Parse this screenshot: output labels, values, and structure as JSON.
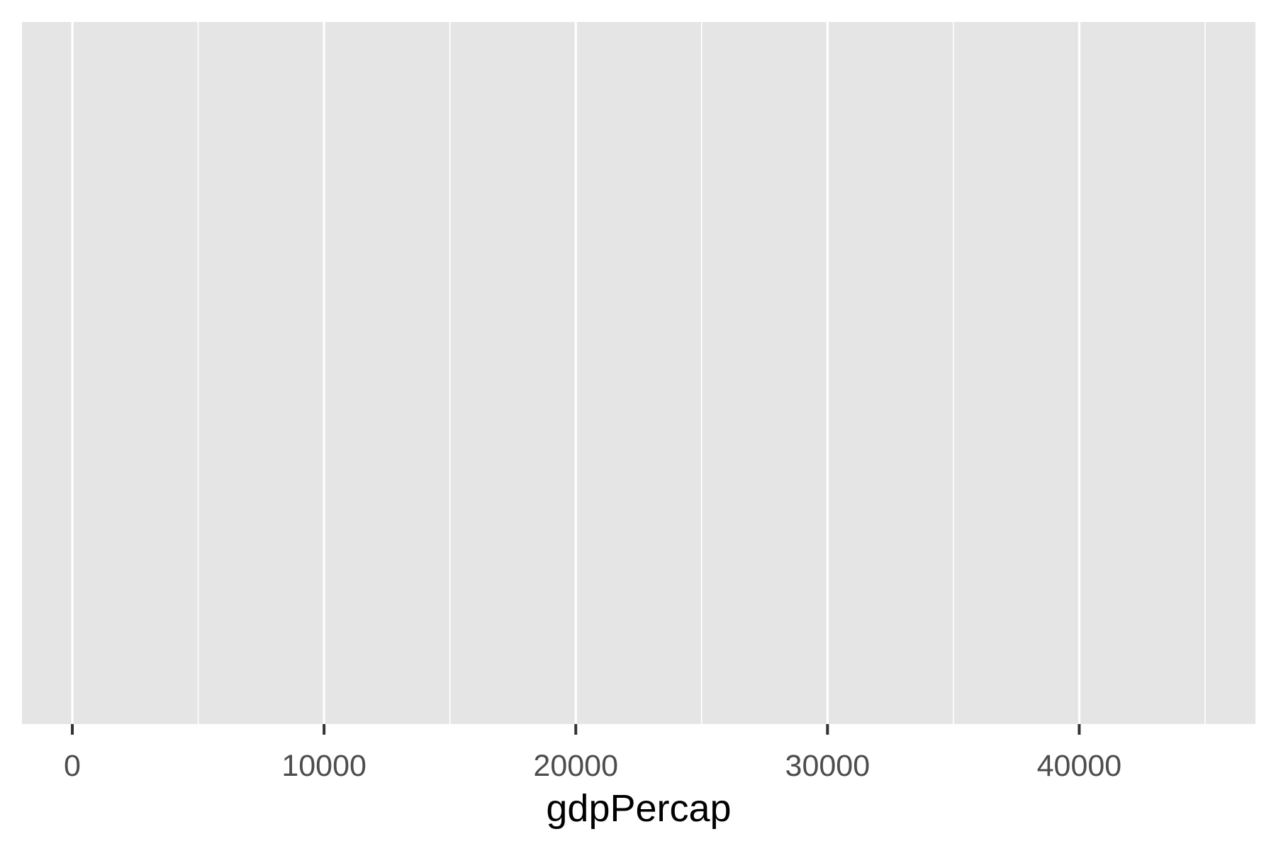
{
  "chart_data": {
    "type": "scatter",
    "title": "",
    "xlabel": "gdpPercap",
    "ylabel": "",
    "xlim": [
      -2000,
      47000
    ],
    "x_ticks": [
      0,
      10000,
      20000,
      30000,
      40000
    ],
    "x_tick_labels": [
      "0",
      "10000",
      "20000",
      "30000",
      "40000"
    ],
    "x_minor_gridlines": [
      5000,
      15000,
      25000,
      35000,
      45000
    ],
    "y_ticks": [],
    "series": [],
    "grid": true,
    "legend": "none",
    "colors": {
      "panel_background": "#e5e5e5",
      "gridline": "#ffffff",
      "tick_mark": "#333333",
      "tick_label": "#4d4d4d",
      "axis_title": "#000000"
    }
  }
}
